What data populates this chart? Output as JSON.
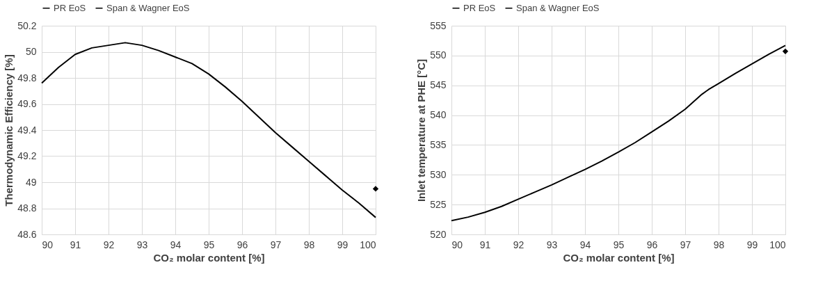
{
  "chart_data": [
    {
      "type": "line",
      "xlabel": "CO₂ molar content [%]",
      "ylabel": "Thermodynamic Efficiency [%]",
      "xlim": [
        90,
        100
      ],
      "xticks": [
        90,
        91,
        92,
        93,
        94,
        95,
        96,
        97,
        98,
        99,
        100
      ],
      "ylim": [
        48.6,
        50.2
      ],
      "yticks": [
        {
          "value": 48.6,
          "label": "48.6"
        },
        {
          "value": 48.8,
          "label": "48.8"
        },
        {
          "value": 49,
          "label": "49"
        },
        {
          "value": 49.2,
          "label": "49.2"
        },
        {
          "value": 49.4,
          "label": "49.4"
        },
        {
          "value": 49.6,
          "label": "49.6"
        },
        {
          "value": 49.8,
          "label": "49.8"
        },
        {
          "value": 50,
          "label": "50"
        },
        {
          "value": 50.2,
          "label": "50.2"
        }
      ],
      "grid": true,
      "legend": "top",
      "series": [
        {
          "name": "PR EoS",
          "type": "line",
          "color": "#000000",
          "line_style": "solid",
          "marker": "none",
          "x": [
            90,
            90.5,
            91,
            91.5,
            92,
            92.5,
            93,
            93.5,
            94,
            94.5,
            95,
            95.5,
            96,
            96.5,
            97,
            97.5,
            98,
            98.5,
            99,
            99.5,
            100
          ],
          "values": [
            49.76,
            49.88,
            49.98,
            50.03,
            50.05,
            50.07,
            50.05,
            50.01,
            49.96,
            49.91,
            49.83,
            49.73,
            49.62,
            49.5,
            49.38,
            49.27,
            49.16,
            49.05,
            48.94,
            48.84,
            48.73
          ]
        },
        {
          "name": "Span & Wagner EoS",
          "type": "scatter",
          "color": "#000000",
          "marker": "diamond",
          "x": [
            100
          ],
          "values": [
            48.95
          ]
        }
      ]
    },
    {
      "type": "line",
      "xlabel": "CO₂ molar content [%]",
      "ylabel": "Inlet temperature at PHE [°C]",
      "xlim": [
        90,
        100
      ],
      "xticks": [
        90,
        91,
        92,
        93,
        94,
        95,
        96,
        97,
        98,
        99,
        100
      ],
      "ylim": [
        520,
        555
      ],
      "yticks": [
        520,
        525,
        530,
        535,
        540,
        545,
        550,
        555
      ],
      "grid": true,
      "legend": "top",
      "series": [
        {
          "name": "PR EoS",
          "type": "line",
          "color": "#000000",
          "line_style": "solid",
          "marker": "none",
          "x": [
            90,
            90.5,
            91,
            91.5,
            92,
            92.5,
            93,
            93.5,
            94,
            94.5,
            95,
            95.5,
            96,
            96.5,
            97,
            97.5,
            97.7,
            98,
            98.5,
            99,
            99.5,
            100
          ],
          "values": [
            522.3,
            522.9,
            523.7,
            524.7,
            525.9,
            527.1,
            528.3,
            529.6,
            530.9,
            532.3,
            533.8,
            535.4,
            537.2,
            539,
            541,
            543.5,
            544.3,
            545.3,
            547,
            548.6,
            550.2,
            551.7
          ]
        },
        {
          "name": "Span & Wagner EoS",
          "type": "scatter",
          "color": "#000000",
          "marker": "diamond",
          "x": [
            100
          ],
          "values": [
            550.7
          ]
        }
      ]
    }
  ]
}
